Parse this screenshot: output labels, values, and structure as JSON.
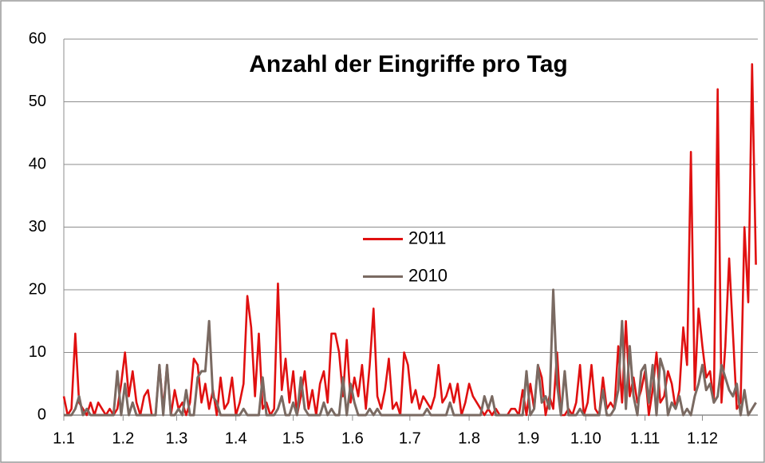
{
  "chart_data": {
    "type": "line",
    "title": "Anzahl der Eingriffe pro Tag",
    "x": [
      0,
      2,
      4,
      6,
      8,
      10,
      12,
      14,
      16,
      18,
      20,
      22,
      24,
      26,
      28,
      30,
      32,
      34,
      36,
      38,
      40,
      42,
      44,
      46,
      48,
      50,
      52,
      54,
      56,
      58,
      60,
      62,
      64,
      66,
      68,
      70,
      72,
      74,
      76,
      78,
      80,
      82,
      84,
      86,
      88,
      90,
      92,
      94,
      96,
      98,
      100,
      102,
      104,
      106,
      108,
      110,
      112,
      114,
      116,
      118,
      120,
      122,
      124,
      126,
      128,
      130,
      132,
      134,
      136,
      138,
      140,
      142,
      144,
      146,
      148,
      150,
      152,
      154,
      156,
      158,
      160,
      162,
      164,
      166,
      168,
      170,
      172,
      174,
      176,
      178,
      180,
      182,
      184,
      186,
      188,
      190,
      192,
      194,
      196,
      198,
      200,
      202,
      204,
      206,
      208,
      210,
      212,
      214,
      216,
      218,
      220,
      222,
      224,
      226,
      228,
      230,
      232,
      234,
      236,
      238,
      240,
      242,
      244,
      246,
      248,
      250,
      252,
      254,
      256,
      258,
      260,
      262,
      264,
      266,
      268,
      270,
      272,
      274,
      276,
      278,
      280,
      282,
      284,
      286,
      288,
      290,
      292,
      294,
      296,
      298,
      300,
      302,
      304,
      306,
      308,
      310,
      312,
      314,
      316,
      318,
      320,
      322,
      324,
      326,
      328,
      330,
      332,
      334,
      336,
      338,
      340,
      342,
      344,
      346,
      348,
      350,
      352,
      354,
      356,
      358,
      360,
      362
    ],
    "series": [
      {
        "name": "2011",
        "color": "#e01010",
        "values": [
          3,
          0,
          1,
          13,
          2,
          1,
          0,
          2,
          0,
          2,
          1,
          0,
          1,
          0,
          1,
          5,
          10,
          3,
          7,
          2,
          0,
          3,
          4,
          0,
          0,
          8,
          1,
          8,
          0,
          4,
          1,
          2,
          0,
          2,
          9,
          8,
          2,
          5,
          1,
          4,
          0,
          6,
          1,
          2,
          6,
          0,
          2,
          5,
          19,
          14,
          3,
          13,
          1,
          2,
          0,
          1,
          21,
          4,
          9,
          2,
          7,
          0,
          3,
          7,
          1,
          4,
          0,
          5,
          7,
          2,
          13,
          13,
          10,
          3,
          12,
          2,
          6,
          3,
          8,
          1,
          8,
          17,
          3,
          1,
          4,
          9,
          1,
          2,
          0,
          10,
          8,
          2,
          4,
          1,
          3,
          2,
          1,
          3,
          8,
          2,
          3,
          5,
          2,
          5,
          0,
          2,
          5,
          3,
          2,
          1,
          0,
          1,
          0,
          1,
          0,
          0,
          0,
          1,
          1,
          0,
          4,
          0,
          5,
          1,
          8,
          6,
          0,
          3,
          1,
          10,
          0,
          0,
          1,
          0,
          2,
          8,
          0,
          2,
          8,
          1,
          0,
          6,
          1,
          2,
          1,
          11,
          2,
          15,
          3,
          6,
          2,
          4,
          7,
          0,
          4,
          10,
          2,
          3,
          7,
          5,
          1,
          4,
          14,
          8,
          42,
          4,
          17,
          11,
          6,
          7,
          2,
          52,
          2,
          11,
          25,
          13,
          1,
          2,
          30,
          18,
          56,
          24
        ]
      },
      {
        "name": "2010",
        "color": "#7a6a62",
        "values": [
          0,
          0,
          0,
          1,
          3,
          0,
          1,
          0,
          0,
          0,
          0,
          0,
          0,
          0,
          7,
          0,
          5,
          0,
          2,
          0,
          0,
          0,
          0,
          0,
          0,
          8,
          0,
          8,
          0,
          0,
          1,
          0,
          4,
          0,
          0,
          6,
          7,
          7,
          15,
          3,
          2,
          0,
          0,
          0,
          0,
          0,
          0,
          1,
          0,
          0,
          0,
          0,
          6,
          0,
          0,
          0,
          1,
          3,
          0,
          0,
          2,
          0,
          6,
          1,
          0,
          0,
          0,
          0,
          2,
          0,
          1,
          0,
          0,
          6,
          0,
          5,
          2,
          0,
          0,
          0,
          1,
          0,
          1,
          0,
          0,
          0,
          0,
          0,
          0,
          0,
          0,
          0,
          0,
          0,
          0,
          1,
          0,
          0,
          0,
          0,
          0,
          2,
          0,
          0,
          0,
          0,
          0,
          0,
          0,
          0,
          3,
          1,
          3,
          0,
          0,
          0,
          0,
          0,
          0,
          0,
          0,
          7,
          0,
          1,
          8,
          2,
          3,
          1,
          20,
          5,
          0,
          7,
          0,
          0,
          0,
          1,
          0,
          0,
          0,
          0,
          0,
          4,
          0,
          0,
          1,
          4,
          15,
          1,
          11,
          3,
          0,
          7,
          8,
          2,
          8,
          0,
          9,
          7,
          0,
          2,
          1,
          3,
          0,
          1,
          0,
          3,
          5,
          8,
          4,
          5,
          2,
          3,
          8,
          6,
          4,
          3,
          5,
          0,
          4,
          0,
          1,
          2
        ]
      }
    ],
    "xlim": [
      0,
      363
    ],
    "xticks": [
      {
        "value": 0,
        "label": "1.1"
      },
      {
        "value": 31,
        "label": "1.2"
      },
      {
        "value": 59,
        "label": "1.3"
      },
      {
        "value": 90,
        "label": "1.4"
      },
      {
        "value": 120,
        "label": "1.5"
      },
      {
        "value": 151,
        "label": "1.6"
      },
      {
        "value": 181,
        "label": "1.7"
      },
      {
        "value": 212,
        "label": "1.8"
      },
      {
        "value": 243,
        "label": "1.9"
      },
      {
        "value": 273,
        "label": "1.10"
      },
      {
        "value": 304,
        "label": "1.11"
      },
      {
        "value": 334,
        "label": "1.12"
      }
    ],
    "ylim": [
      0,
      60
    ],
    "yticks": [
      0,
      10,
      20,
      30,
      40,
      50,
      60
    ],
    "grid": true,
    "legend": "center"
  }
}
